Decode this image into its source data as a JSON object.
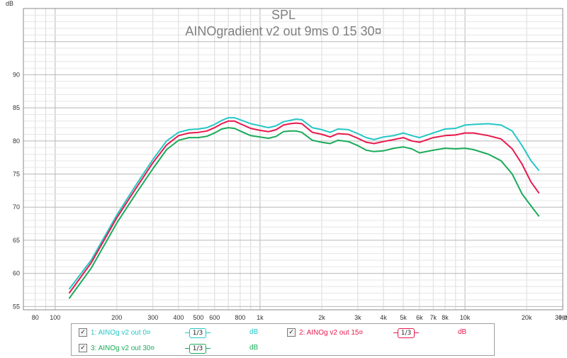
{
  "chart_data": {
    "type": "line",
    "title": "SPL",
    "subtitle": "AINOgradient v2 out 9ms 0 15 30¤",
    "ylabel": "dB",
    "xlabel": "Hz",
    "x_scale": "log",
    "xlim": [
      70,
      30000
    ],
    "ylim": [
      54.5,
      100
    ],
    "yticks": [
      55,
      60,
      65,
      70,
      75,
      80,
      85,
      90
    ],
    "xticks": [
      {
        "v": 80,
        "label": "80"
      },
      {
        "v": 100,
        "label": "100"
      },
      {
        "v": 200,
        "label": "200"
      },
      {
        "v": 300,
        "label": "300"
      },
      {
        "v": 400,
        "label": "400"
      },
      {
        "v": 500,
        "label": "500"
      },
      {
        "v": 600,
        "label": "600"
      },
      {
        "v": 800,
        "label": "800"
      },
      {
        "v": 1000,
        "label": "1k"
      },
      {
        "v": 2000,
        "label": "2k"
      },
      {
        "v": 3000,
        "label": "3k"
      },
      {
        "v": 4000,
        "label": "4k"
      },
      {
        "v": 5000,
        "label": "5k"
      },
      {
        "v": 6000,
        "label": "6k"
      },
      {
        "v": 7000,
        "label": "7k"
      },
      {
        "v": 8000,
        "label": "8k"
      },
      {
        "v": 10000,
        "label": "10k"
      },
      {
        "v": 20000,
        "label": "20k"
      },
      {
        "v": 30000,
        "label": "30,0k"
      }
    ],
    "grid": true,
    "series": [
      {
        "name": "1: AINOg v2 out 0¤",
        "color": "#26c6c6",
        "points": [
          [
            117,
            57.6
          ],
          [
            150,
            62.0
          ],
          [
            200,
            68.8
          ],
          [
            250,
            73.5
          ],
          [
            300,
            77.2
          ],
          [
            350,
            80.0
          ],
          [
            400,
            81.3
          ],
          [
            450,
            81.7
          ],
          [
            500,
            81.8
          ],
          [
            550,
            82.0
          ],
          [
            600,
            82.5
          ],
          [
            650,
            83.1
          ],
          [
            700,
            83.5
          ],
          [
            750,
            83.5
          ],
          [
            800,
            83.2
          ],
          [
            900,
            82.6
          ],
          [
            1000,
            82.3
          ],
          [
            1100,
            82.0
          ],
          [
            1200,
            82.3
          ],
          [
            1300,
            82.9
          ],
          [
            1400,
            83.1
          ],
          [
            1500,
            83.3
          ],
          [
            1600,
            83.2
          ],
          [
            1800,
            82.0
          ],
          [
            2000,
            81.7
          ],
          [
            2200,
            81.3
          ],
          [
            2400,
            81.8
          ],
          [
            2700,
            81.7
          ],
          [
            3000,
            81.1
          ],
          [
            3300,
            80.5
          ],
          [
            3600,
            80.2
          ],
          [
            4000,
            80.6
          ],
          [
            4500,
            80.8
          ],
          [
            5000,
            81.2
          ],
          [
            5500,
            80.8
          ],
          [
            6000,
            80.5
          ],
          [
            7000,
            81.2
          ],
          [
            8000,
            81.8
          ],
          [
            9000,
            81.9
          ],
          [
            10000,
            82.4
          ],
          [
            11000,
            82.5
          ],
          [
            13000,
            82.6
          ],
          [
            15000,
            82.4
          ],
          [
            17000,
            81.5
          ],
          [
            19000,
            79.3
          ],
          [
            21000,
            77.0
          ],
          [
            23000,
            75.5
          ]
        ]
      },
      {
        "name": "2: AINOg v2 out 15¤",
        "color": "#e8194d",
        "points": [
          [
            117,
            57.0
          ],
          [
            150,
            61.6
          ],
          [
            200,
            68.4
          ],
          [
            250,
            73.0
          ],
          [
            300,
            76.7
          ],
          [
            350,
            79.4
          ],
          [
            400,
            80.8
          ],
          [
            450,
            81.2
          ],
          [
            500,
            81.3
          ],
          [
            550,
            81.5
          ],
          [
            600,
            82.0
          ],
          [
            650,
            82.6
          ],
          [
            700,
            83.0
          ],
          [
            750,
            83.0
          ],
          [
            800,
            82.6
          ],
          [
            900,
            81.9
          ],
          [
            1000,
            81.6
          ],
          [
            1100,
            81.4
          ],
          [
            1200,
            81.7
          ],
          [
            1300,
            82.4
          ],
          [
            1400,
            82.6
          ],
          [
            1500,
            82.7
          ],
          [
            1600,
            82.6
          ],
          [
            1800,
            81.3
          ],
          [
            2000,
            81.0
          ],
          [
            2200,
            80.6
          ],
          [
            2400,
            81.1
          ],
          [
            2700,
            81.0
          ],
          [
            3000,
            80.4
          ],
          [
            3300,
            79.8
          ],
          [
            3600,
            79.6
          ],
          [
            4000,
            79.9
          ],
          [
            4500,
            80.2
          ],
          [
            5000,
            80.5
          ],
          [
            5500,
            80.0
          ],
          [
            6000,
            79.8
          ],
          [
            7000,
            80.5
          ],
          [
            8000,
            80.8
          ],
          [
            9000,
            80.9
          ],
          [
            10000,
            81.2
          ],
          [
            11000,
            81.2
          ],
          [
            13000,
            80.8
          ],
          [
            15000,
            80.3
          ],
          [
            17000,
            78.8
          ],
          [
            19000,
            76.5
          ],
          [
            21000,
            73.8
          ],
          [
            23000,
            72.1
          ]
        ]
      },
      {
        "name": "3: AINOg v2 out 30¤",
        "color": "#1aab5a",
        "points": [
          [
            117,
            56.2
          ],
          [
            150,
            60.8
          ],
          [
            200,
            67.6
          ],
          [
            250,
            72.2
          ],
          [
            300,
            75.8
          ],
          [
            350,
            78.7
          ],
          [
            400,
            80.1
          ],
          [
            450,
            80.5
          ],
          [
            500,
            80.5
          ],
          [
            550,
            80.7
          ],
          [
            600,
            81.2
          ],
          [
            650,
            81.8
          ],
          [
            700,
            82.0
          ],
          [
            750,
            81.9
          ],
          [
            800,
            81.5
          ],
          [
            900,
            80.8
          ],
          [
            1000,
            80.6
          ],
          [
            1100,
            80.4
          ],
          [
            1200,
            80.7
          ],
          [
            1300,
            81.4
          ],
          [
            1400,
            81.5
          ],
          [
            1500,
            81.5
          ],
          [
            1600,
            81.3
          ],
          [
            1800,
            80.1
          ],
          [
            2000,
            79.8
          ],
          [
            2200,
            79.6
          ],
          [
            2400,
            80.1
          ],
          [
            2700,
            79.9
          ],
          [
            3000,
            79.3
          ],
          [
            3300,
            78.6
          ],
          [
            3600,
            78.4
          ],
          [
            4000,
            78.5
          ],
          [
            4500,
            78.9
          ],
          [
            5000,
            79.1
          ],
          [
            5500,
            78.8
          ],
          [
            6000,
            78.2
          ],
          [
            7000,
            78.6
          ],
          [
            8000,
            78.9
          ],
          [
            9000,
            78.8
          ],
          [
            10000,
            78.9
          ],
          [
            11000,
            78.7
          ],
          [
            13000,
            78.0
          ],
          [
            15000,
            77.0
          ],
          [
            17000,
            75.0
          ],
          [
            19000,
            72.0
          ],
          [
            21000,
            70.2
          ],
          [
            23000,
            68.6
          ]
        ]
      }
    ]
  },
  "legend": {
    "items": [
      {
        "check": "✓",
        "label": "1: AINOg v2 out 0¤",
        "smoothing": "1/3",
        "unit": "dB"
      },
      {
        "check": "✓",
        "label": "2: AINOg v2 out 15¤",
        "smoothing": "1/3",
        "unit": "dB"
      },
      {
        "check": "✓",
        "label": "3: AINOg v2 out 30¤",
        "smoothing": "1/3",
        "unit": "dB"
      }
    ]
  }
}
